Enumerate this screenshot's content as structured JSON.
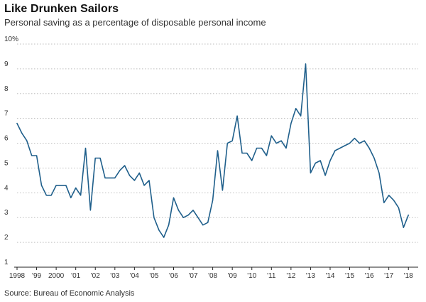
{
  "header": {
    "title": "Like Drunken Sailors",
    "subtitle": "Personal saving as a percentage of disposable personal income"
  },
  "footer": {
    "source": "Source: Bureau of Economic Analysis"
  },
  "colors": {
    "line": "#1f5f8b",
    "grid": "#bdbdbd",
    "axis": "#222222"
  },
  "chart_data": {
    "type": "line",
    "title": "Like Drunken Sailors",
    "subtitle": "Personal saving as a percentage of disposable personal income",
    "xlabel": "",
    "ylabel": "",
    "xlim": [
      1998,
      2018.5
    ],
    "ylim": [
      1,
      10
    ],
    "grid": "horizontal dotted",
    "x_tick_values": [
      1998,
      1999,
      2000,
      2001,
      2002,
      2003,
      2004,
      2005,
      2006,
      2007,
      2008,
      2009,
      2010,
      2011,
      2012,
      2013,
      2014,
      2015,
      2016,
      2017,
      2018
    ],
    "x_tick_labels": [
      "1998",
      "'99",
      "2000",
      "'01",
      "'02",
      "'03",
      "'04",
      "'05",
      "'06",
      "'07",
      "'08",
      "'09",
      "'10",
      "'11",
      "'12",
      "'13",
      "'14",
      "'15",
      "'16",
      "'17",
      "'18"
    ],
    "y_tick_values": [
      1,
      2,
      3,
      4,
      5,
      6,
      7,
      8,
      9,
      10
    ],
    "y_tick_labels": [
      "1",
      "2",
      "3",
      "4",
      "5",
      "6",
      "7",
      "8",
      "9",
      "10%"
    ],
    "series": [
      {
        "points": [
          [
            1998.0,
            6.8
          ],
          [
            1998.25,
            6.4
          ],
          [
            1998.5,
            6.1
          ],
          [
            1998.75,
            5.5
          ],
          [
            1999.0,
            5.5
          ],
          [
            1999.25,
            4.3
          ],
          [
            1999.5,
            3.9
          ],
          [
            1999.75,
            3.9
          ],
          [
            2000.0,
            4.3
          ],
          [
            2000.25,
            4.3
          ],
          [
            2000.5,
            4.3
          ],
          [
            2000.75,
            3.8
          ],
          [
            2001.0,
            4.2
          ],
          [
            2001.25,
            3.9
          ],
          [
            2001.5,
            5.8
          ],
          [
            2001.75,
            3.3
          ],
          [
            2002.0,
            5.4
          ],
          [
            2002.25,
            5.4
          ],
          [
            2002.5,
            4.6
          ],
          [
            2002.75,
            4.6
          ],
          [
            2003.0,
            4.6
          ],
          [
            2003.25,
            4.9
          ],
          [
            2003.5,
            5.1
          ],
          [
            2003.75,
            4.7
          ],
          [
            2004.0,
            4.5
          ],
          [
            2004.25,
            4.8
          ],
          [
            2004.5,
            4.3
          ],
          [
            2004.75,
            4.5
          ],
          [
            2005.0,
            3.0
          ],
          [
            2005.25,
            2.5
          ],
          [
            2005.5,
            2.2
          ],
          [
            2005.75,
            2.7
          ],
          [
            2006.0,
            3.8
          ],
          [
            2006.25,
            3.3
          ],
          [
            2006.5,
            3.0
          ],
          [
            2006.75,
            3.1
          ],
          [
            2007.0,
            3.3
          ],
          [
            2007.25,
            3.0
          ],
          [
            2007.5,
            2.7
          ],
          [
            2007.75,
            2.8
          ],
          [
            2008.0,
            3.7
          ],
          [
            2008.25,
            5.7
          ],
          [
            2008.5,
            4.1
          ],
          [
            2008.75,
            6.0
          ],
          [
            2009.0,
            6.1
          ],
          [
            2009.25,
            7.1
          ],
          [
            2009.5,
            5.6
          ],
          [
            2009.75,
            5.6
          ],
          [
            2010.0,
            5.3
          ],
          [
            2010.25,
            5.8
          ],
          [
            2010.5,
            5.8
          ],
          [
            2010.75,
            5.5
          ],
          [
            2011.0,
            6.3
          ],
          [
            2011.25,
            6.0
          ],
          [
            2011.5,
            6.1
          ],
          [
            2011.75,
            5.8
          ],
          [
            2012.0,
            6.8
          ],
          [
            2012.25,
            7.4
          ],
          [
            2012.5,
            7.1
          ],
          [
            2012.75,
            9.2
          ],
          [
            2013.0,
            4.8
          ],
          [
            2013.25,
            5.2
          ],
          [
            2013.5,
            5.3
          ],
          [
            2013.75,
            4.7
          ],
          [
            2014.0,
            5.3
          ],
          [
            2014.25,
            5.7
          ],
          [
            2014.5,
            5.8
          ],
          [
            2014.75,
            5.9
          ],
          [
            2015.0,
            6.0
          ],
          [
            2015.25,
            6.2
          ],
          [
            2015.5,
            6.0
          ],
          [
            2015.75,
            6.1
          ],
          [
            2016.0,
            5.8
          ],
          [
            2016.25,
            5.4
          ],
          [
            2016.5,
            4.8
          ],
          [
            2016.75,
            3.6
          ],
          [
            2017.0,
            3.9
          ],
          [
            2017.25,
            3.7
          ],
          [
            2017.5,
            3.4
          ],
          [
            2017.75,
            2.6
          ],
          [
            2018.0,
            3.1
          ]
        ]
      }
    ]
  }
}
